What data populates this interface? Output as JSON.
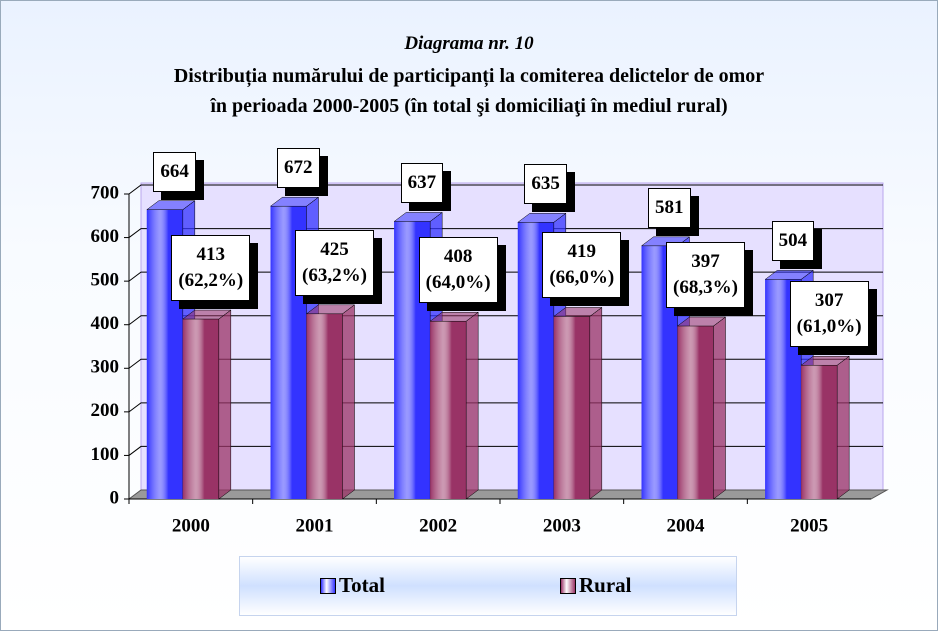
{
  "chart_data": {
    "type": "bar",
    "subtitle": "Diagrama nr. 10",
    "title": "Distribuția numărului de participanți la comiterea delictelor de omor\nîn perioada 2000-2005 (în total şi domiciliaţi în mediul rural)",
    "categories": [
      "2000",
      "2001",
      "2002",
      "2003",
      "2004",
      "2005"
    ],
    "series": [
      {
        "name": "Total",
        "color": "#3333ff",
        "values": [
          664,
          672,
          637,
          635,
          581,
          504
        ]
      },
      {
        "name": "Rural",
        "color": "#993366",
        "values": [
          413,
          425,
          408,
          419,
          397,
          307
        ],
        "value_labels": [
          "413\n(62,2%)",
          "425\n(63,2%)",
          "408\n(64,0%)",
          "419\n(66,0%)",
          "397\n(68,3%)",
          "307\n(61,0%)"
        ]
      }
    ],
    "ylim": [
      0,
      700
    ],
    "yticks": [
      0,
      100,
      200,
      300,
      400,
      500,
      600,
      700
    ],
    "grid": true,
    "legend": "bottom"
  }
}
